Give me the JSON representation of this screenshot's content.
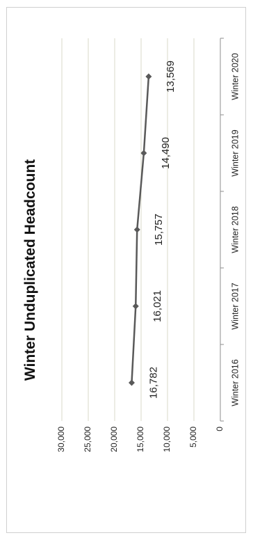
{
  "chart_data": {
    "type": "line",
    "title": "Winter Unduplicated Headcount",
    "categories": [
      "Winter 2016",
      "Winter 2017",
      "Winter 2018",
      "Winter 2019",
      "Winter 2020"
    ],
    "series": [
      {
        "values": [
          16782,
          16021,
          15757,
          14490,
          13569
        ]
      }
    ],
    "data_labels": [
      "16,782",
      "16,021",
      "15,757",
      "14,490",
      "13,569"
    ],
    "ylim": [
      0,
      30000
    ],
    "yticks": [
      0,
      5000,
      10000,
      15000,
      20000,
      25000,
      30000
    ],
    "ytick_labels": [
      "0",
      "5,000",
      "10,000",
      "15,000",
      "20,000",
      "25,000",
      "30,000"
    ],
    "grid": true,
    "orientation": "rotated 90 degrees counter-clockwise",
    "colors": {
      "line": "#595959",
      "grid": "#d9d9c8",
      "axis": "#8c8c8c"
    }
  }
}
